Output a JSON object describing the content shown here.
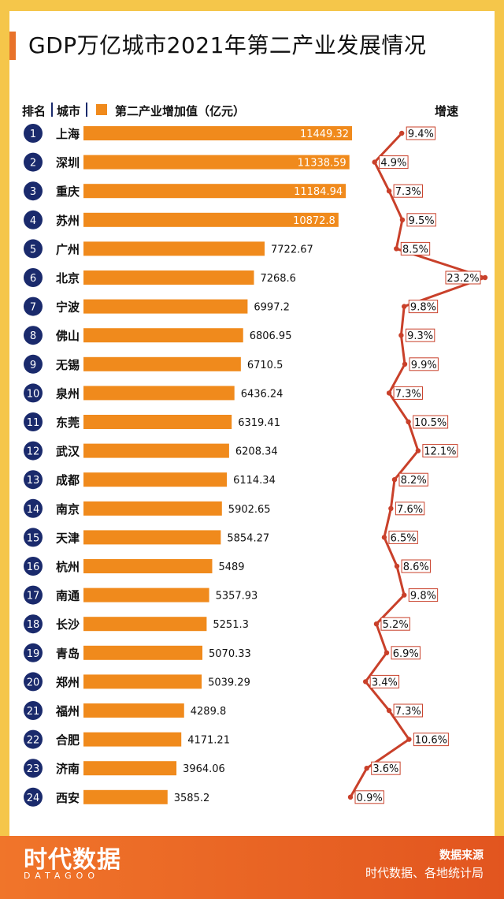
{
  "title": "GDP万亿城市2021年第二产业发展情况",
  "headers": {
    "rank": "排名",
    "city": "城市",
    "legend": "第二产业增加值（亿元）",
    "growth": "增速"
  },
  "source": {
    "title": "数据来源",
    "text": "时代数据、各地统计局"
  },
  "brand": {
    "name": "时代数据",
    "sub": "DATAGOO"
  },
  "colors": {
    "bar": "#f08a1c",
    "line": "#c9402a",
    "rank_circle": "#1a2a6c",
    "footer": "#e8622a",
    "frame": "#f5c64a"
  },
  "chart_data": {
    "type": "bar",
    "title": "GDP万亿城市2021年第二产业发展情况",
    "xlabel": "第二产业增加值（亿元）",
    "ylabel": "城市",
    "ranks": [
      "1",
      "2",
      "3",
      "4",
      "5",
      "6",
      "7",
      "8",
      "9",
      "10",
      "11",
      "12",
      "13",
      "14",
      "15",
      "16",
      "17",
      "18",
      "19",
      "20",
      "21",
      "22",
      "23",
      "24"
    ],
    "categories": [
      "上海",
      "深圳",
      "重庆",
      "苏州",
      "广州",
      "北京",
      "宁波",
      "佛山",
      "无锡",
      "泉州",
      "东莞",
      "武汉",
      "成都",
      "南京",
      "天津",
      "杭州",
      "南通",
      "长沙",
      "青岛",
      "郑州",
      "福州",
      "合肥",
      "济南",
      "西安"
    ],
    "value_labels": [
      "11449.32",
      "11338.59",
      "11184.94",
      "10872.8",
      "7722.67",
      "7268.6",
      "6997.2",
      "6806.95",
      "6710.5",
      "6436.24",
      "6319.41",
      "6208.34",
      "6114.34",
      "5902.65",
      "5854.27",
      "5489",
      "5357.93",
      "5251.3",
      "5070.33",
      "5039.29",
      "4289.8",
      "4171.21",
      "3964.06",
      "3585.2"
    ],
    "values": [
      11449.32,
      11338.59,
      11184.94,
      10872.8,
      7722.67,
      7268.6,
      6997.2,
      6806.95,
      6710.5,
      6436.24,
      6319.41,
      6208.34,
      6114.34,
      5902.65,
      5854.27,
      5489,
      5357.93,
      5251.3,
      5070.33,
      5039.29,
      4289.8,
      4171.21,
      3964.06,
      3585.2
    ],
    "growth_labels": [
      "9.4%",
      "4.9%",
      "7.3%",
      "9.5%",
      "8.5%",
      "23.2%",
      "9.8%",
      "9.3%",
      "9.9%",
      "7.3%",
      "10.5%",
      "12.1%",
      "8.2%",
      "7.6%",
      "6.5%",
      "8.6%",
      "9.8%",
      "5.2%",
      "6.9%",
      "3.4%",
      "7.3%",
      "10.6%",
      "3.6%",
      "0.9%"
    ],
    "growth": [
      9.4,
      4.9,
      7.3,
      9.5,
      8.5,
      23.2,
      9.8,
      9.3,
      9.9,
      7.3,
      10.5,
      12.1,
      8.2,
      7.6,
      6.5,
      8.6,
      9.8,
      5.2,
      6.9,
      3.4,
      7.3,
      10.6,
      3.6,
      0.9
    ],
    "xlim": [
      0,
      11449.32
    ],
    "growth_lim": [
      0.9,
      23.2
    ]
  }
}
